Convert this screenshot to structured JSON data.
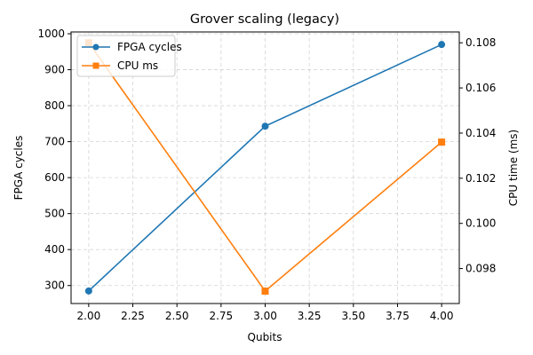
{
  "chart_data": {
    "type": "line",
    "title": "Grover scaling (legacy)",
    "xlabel": "Qubits",
    "ylabel": "FPGA cycles",
    "ylabel_right": "CPU time (ms)",
    "x": [
      2,
      3,
      4
    ],
    "xlim": [
      1.9,
      4.1
    ],
    "x_ticks": [
      "2.00",
      "2.25",
      "2.50",
      "2.75",
      "3.00",
      "3.25",
      "3.50",
      "3.75",
      "4.00"
    ],
    "ylim": [
      250,
      1005
    ],
    "y_ticks": [
      "300",
      "400",
      "500",
      "600",
      "700",
      "800",
      "900",
      "1000"
    ],
    "ylim_right": [
      0.09645,
      0.10848
    ],
    "y_ticks_right": [
      "0.098",
      "0.100",
      "0.102",
      "0.104",
      "0.106",
      "0.108"
    ],
    "grid": true,
    "legend_position": "top-left",
    "series": [
      {
        "name": "FPGA cycles",
        "axis": "left",
        "values": [
          285,
          743,
          970
        ],
        "color": "#1f77b4",
        "marker": "circle"
      },
      {
        "name": "CPU ms",
        "axis": "right",
        "values": [
          0.108,
          0.097,
          0.1036
        ],
        "color": "#ff7f0e",
        "marker": "square"
      }
    ]
  }
}
